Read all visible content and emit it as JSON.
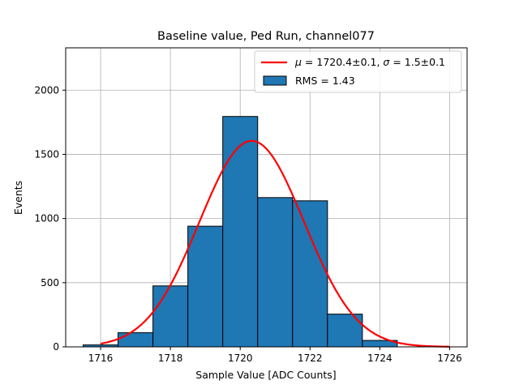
{
  "chart_data": {
    "type": "bar",
    "title": "Baseline value, Ped Run, channel077",
    "xlabel": "Sample Value [ADC Counts]",
    "ylabel": "Events",
    "xlim": [
      1715.0,
      1726.5
    ],
    "ylim": [
      0,
      2330
    ],
    "grid": true,
    "legend_position": "top-right",
    "x_ticks": [
      1716,
      1718,
      1720,
      1722,
      1724,
      1726
    ],
    "y_ticks": [
      0,
      500,
      1000,
      1500,
      2000
    ],
    "histogram": {
      "name": "RMS = 1.43",
      "color": "#1f77b4",
      "bins": [
        {
          "left": 1715.5,
          "right": 1716.5,
          "value": 15
        },
        {
          "left": 1716.5,
          "right": 1717.5,
          "value": 110
        },
        {
          "left": 1717.5,
          "right": 1718.5,
          "value": 475
        },
        {
          "left": 1718.5,
          "right": 1719.5,
          "value": 940
        },
        {
          "left": 1719.5,
          "right": 1720.5,
          "value": 1795
        },
        {
          "left": 1720.5,
          "right": 1721.5,
          "value": 1163
        },
        {
          "left": 1721.5,
          "right": 1722.5,
          "value": 1138
        },
        {
          "left": 1722.5,
          "right": 1723.5,
          "value": 255
        },
        {
          "left": 1723.5,
          "right": 1724.5,
          "value": 50
        }
      ]
    },
    "fit": {
      "name": "$\\mu = 1720.4$±0.1, $\\sigma = 1.5$±0.1",
      "label_mu": "μ",
      "label_mu_value": " = 1720.4±0.1, ",
      "label_sigma": "σ",
      "label_sigma_value": " = 1.5±0.1",
      "color": "#ff0000",
      "mu": 1720.33,
      "sigma": 1.5,
      "amplitude": 1605,
      "x_range": [
        1716,
        1726
      ]
    }
  }
}
